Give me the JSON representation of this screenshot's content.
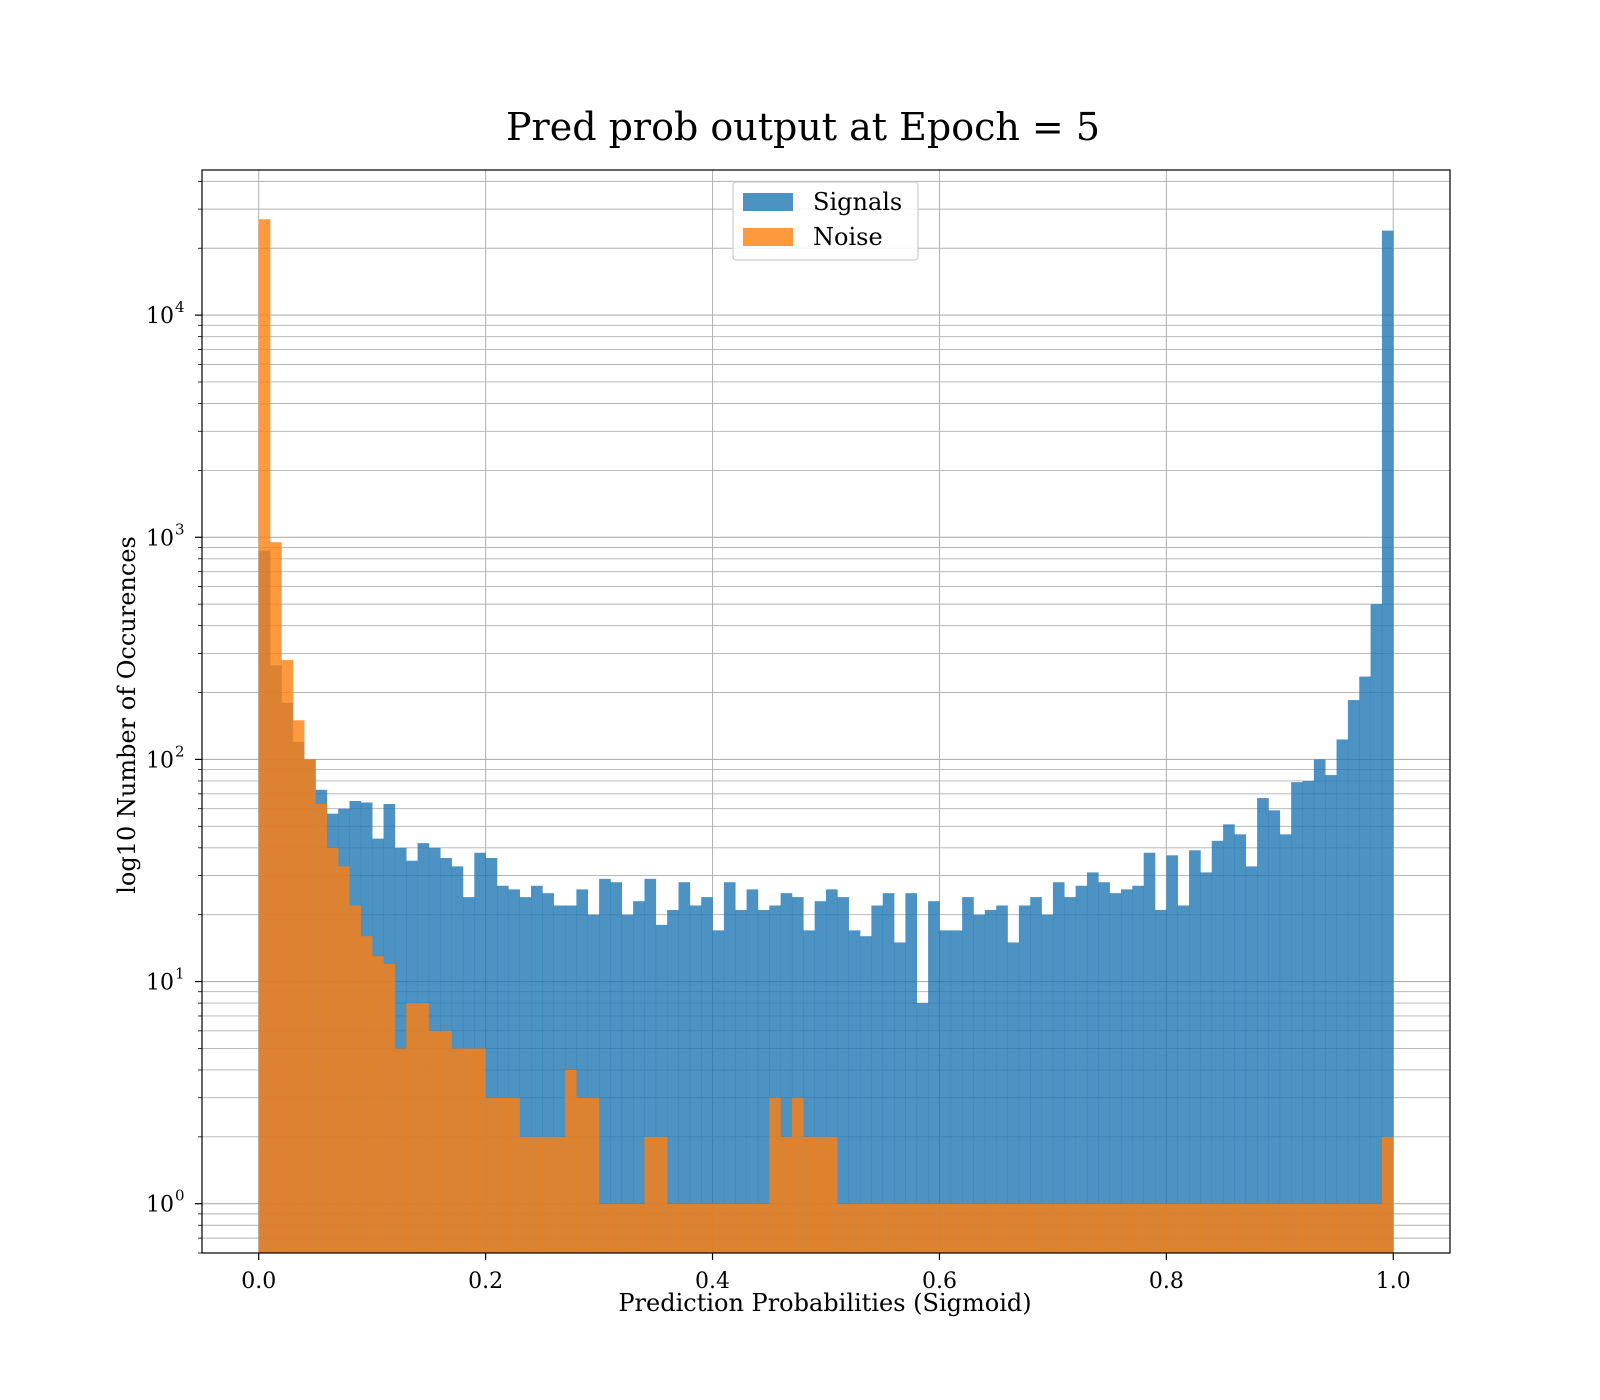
{
  "chart_data": {
    "type": "bar",
    "title": "Pred prob output at Epoch = 5",
    "xlabel": "Prediction Probabilities (Sigmoid)",
    "ylabel": "log10 Number of Occurences",
    "xlim": [
      -0.05,
      1.05
    ],
    "ylim": [
      0.6,
      45000
    ],
    "yscale": "log",
    "grid": true,
    "legend_position": "upper center",
    "bin_start": 0.0,
    "bin_width": 0.01,
    "x_ticks": [
      0.0,
      0.2,
      0.4,
      0.6,
      0.8,
      1.0
    ],
    "x_tick_labels": [
      "0.0",
      "0.2",
      "0.4",
      "0.6",
      "0.8",
      "1.0"
    ],
    "y_ticks": [
      1,
      10,
      100,
      1000,
      10000
    ],
    "y_tick_labels": [
      "10",
      "10",
      "10",
      "10",
      "10"
    ],
    "y_tick_exponents": [
      "0",
      "1",
      "2",
      "3",
      "4"
    ],
    "series": [
      {
        "name": "Signals",
        "color": "#1f77b4",
        "values": [
          870,
          265,
          180,
          120,
          100,
          73,
          57,
          60,
          65,
          64,
          44,
          63,
          40,
          35,
          42,
          40,
          36,
          33,
          24,
          38,
          36,
          27,
          26,
          24,
          27,
          25,
          22,
          22,
          26,
          20,
          29,
          28,
          20,
          23,
          29,
          18,
          21,
          28,
          22,
          24,
          17,
          28,
          21,
          26,
          21,
          22,
          25,
          24,
          17,
          23,
          26,
          24,
          17,
          16,
          22,
          25,
          15,
          25,
          8,
          23,
          17,
          17,
          24,
          20,
          21,
          22,
          15,
          22,
          24,
          20,
          28,
          24,
          27,
          31,
          28,
          25,
          26,
          27,
          38,
          21,
          37,
          22,
          39,
          31,
          43,
          51,
          46,
          33,
          67,
          59,
          46,
          79,
          80,
          100,
          85,
          123,
          185,
          236,
          500,
          24000
        ]
      },
      {
        "name": "Noise",
        "color": "#ff7f0e",
        "values": [
          27000,
          950,
          280,
          150,
          100,
          63,
          40,
          33,
          22,
          16,
          13,
          12,
          5,
          8,
          8,
          6,
          6,
          5,
          5,
          5,
          3,
          3,
          3,
          2,
          2,
          2,
          2,
          4,
          3,
          3,
          1,
          1,
          1,
          1,
          2,
          2,
          1,
          1,
          1,
          1,
          1,
          1,
          1,
          1,
          1,
          3,
          2,
          3,
          2,
          2,
          2,
          1,
          1,
          1,
          1,
          1,
          1,
          1,
          1,
          1,
          1,
          1,
          1,
          1,
          1,
          1,
          1,
          1,
          1,
          1,
          1,
          1,
          1,
          1,
          1,
          1,
          1,
          1,
          1,
          1,
          1,
          1,
          1,
          1,
          1,
          1,
          1,
          1,
          1,
          1,
          1,
          1,
          1,
          1,
          1,
          1,
          1,
          1,
          1,
          2
        ]
      }
    ]
  }
}
